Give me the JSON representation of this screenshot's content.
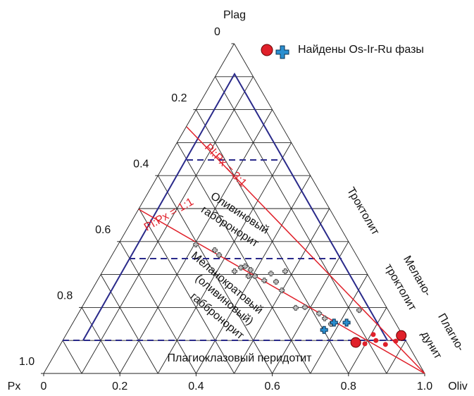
{
  "chart_data": {
    "type": "ternary",
    "apex_labels": {
      "top": "Plag",
      "left": "Px",
      "right": "Oliv"
    },
    "bottom_ticks": [
      0,
      0.2,
      0.4,
      0.6,
      0.8,
      {
        "value": 1,
        "label": "1.0"
      }
    ],
    "left_ticks": [
      0,
      0.2,
      0.4,
      0.6,
      0.8,
      {
        "value": 1,
        "label": "1.0"
      }
    ],
    "legend_label": "Найдены Os-Ir-Ru фазы",
    "ratio_labels": [
      "Pl:Px = 3:1",
      "Pl:Px = 1:1"
    ],
    "field_labels": [
      [
        "Троктолит"
      ],
      [
        "Мелано-",
        "троктолит"
      ],
      [
        "Плагио-",
        "дунит"
      ],
      [
        "Оливиновый",
        "габбронорит"
      ],
      [
        "Меланократовый",
        "(оливиновый)",
        "габбронорит"
      ],
      [
        "Плагиоклазовый перидотит"
      ]
    ],
    "series": [
      {
        "marker": "cross",
        "color": "#c8c8c8",
        "plag": [
          0.391,
          0.374,
          0.359,
          0.31,
          0.321,
          0.325,
          0.314,
          0.295,
          0.295,
          0.282,
          0.303,
          0.31,
          0.278,
          0.252,
          0.199,
          0.201,
          0.182,
          0.167,
          0.15,
          0.192
        ],
        "oliv": [
          0.204,
          0.262,
          0.281,
          0.346,
          0.357,
          0.366,
          0.386,
          0.39,
          0.407,
          0.438,
          0.445,
          0.479,
          0.471,
          0.499,
          0.562,
          0.585,
          0.632,
          0.654,
          0.679,
          0.732
        ]
      },
      {
        "marker": "cross",
        "color": "#2a8fd0",
        "plag": [
          0.132,
          0.154,
          0.154
        ],
        "oliv": [
          0.67,
          0.685,
          0.718
        ]
      },
      {
        "marker": "circle-large",
        "color": "#e0202a",
        "plag": [
          0.094,
          0.115
        ],
        "oliv": [
          0.772,
          0.881
        ]
      },
      {
        "marker": "circle-small",
        "color": "#e0202a",
        "plag": [
          0.09,
          0.118,
          0.1,
          0.088,
          0.098
        ],
        "oliv": [
          0.798,
          0.806,
          0.822,
          0.853,
          0.875
        ]
      }
    ]
  }
}
